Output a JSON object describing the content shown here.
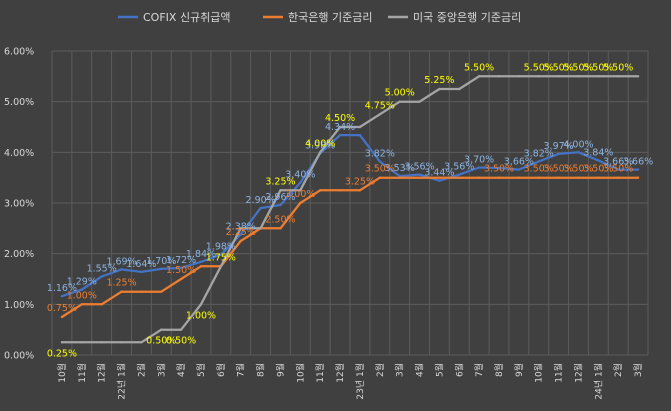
{
  "chart_data": {
    "type": "line",
    "title": "",
    "xlabel": "",
    "ylabel": "",
    "ylim": [
      0,
      6
    ],
    "yticks": [
      "0.00%",
      "1.00%",
      "2.00%",
      "3.00%",
      "4.00%",
      "5.00%",
      "6.00%"
    ],
    "grid": true,
    "legend_position": "top",
    "categories": [
      "10",
      "11",
      "12",
      "22년 1",
      "2",
      "3",
      "4",
      "5",
      "6",
      "7",
      "8",
      "9",
      "10",
      "11",
      "12",
      "23년 1",
      "2",
      "3",
      "4",
      "5",
      "6",
      "7",
      "8",
      "9",
      "10",
      "11",
      "12",
      "24년 1",
      "2",
      "3"
    ],
    "x_suffix": "월",
    "series": [
      {
        "name": "COFIX 신규취급액",
        "color": "#4472c4",
        "label_color": "#8db4e2",
        "values": [
          1.16,
          1.29,
          1.55,
          1.69,
          1.64,
          1.7,
          1.72,
          1.84,
          1.98,
          2.38,
          2.9,
          2.96,
          3.4,
          3.98,
          4.34,
          4.34,
          3.82,
          3.53,
          3.56,
          3.44,
          3.56,
          3.7,
          3.69,
          3.66,
          3.82,
          3.97,
          4.0,
          3.84,
          3.66,
          3.66
        ],
        "labels": [
          "1.16%",
          "1.29%",
          "1.55%",
          "1.69%",
          "1.64%",
          "1.70%",
          "1.72%",
          "1.84%",
          "1.98%",
          "2.38%",
          "2.90%",
          "2.96%",
          "3.40%",
          "3.98%",
          "4.34%",
          "",
          "3.82%",
          "3.53%",
          "3.56%",
          "3.44%",
          "3.56%",
          "3.70%",
          "",
          "3.66%",
          "3.82%",
          "3.97%",
          "4.00%",
          "3.84%",
          "3.66%",
          "3.66%"
        ]
      },
      {
        "name": "한국은행 기준금리",
        "color": "#ed7d31",
        "label_color": "#ed7d31",
        "values": [
          0.75,
          1.0,
          1.0,
          1.25,
          1.25,
          1.25,
          1.5,
          1.75,
          1.75,
          2.25,
          2.5,
          2.5,
          3.0,
          3.25,
          3.25,
          3.25,
          3.5,
          3.5,
          3.5,
          3.5,
          3.5,
          3.5,
          3.5,
          3.5,
          3.5,
          3.5,
          3.5,
          3.5,
          3.5,
          3.5
        ],
        "labels": [
          "0.75%",
          "1.00%",
          "",
          "1.25%",
          "",
          "",
          "1.50%",
          "",
          "",
          "2.25%",
          "",
          "2.50%",
          "3.00%",
          "",
          "",
          "3.25%",
          "3.50%",
          "",
          "",
          "",
          "",
          "",
          "3.50%",
          "",
          "3.50%",
          "3.50%",
          "3.50%",
          "3.50%",
          "3.50%",
          ""
        ]
      },
      {
        "name": "미국 중앙은행 기준금리",
        "color": "#a5a5a5",
        "label_color": "#ffff00",
        "values": [
          0.25,
          0.25,
          0.25,
          0.25,
          0.25,
          0.5,
          0.5,
          1.0,
          1.75,
          2.5,
          2.5,
          3.25,
          3.25,
          4.0,
          4.5,
          4.5,
          4.75,
          5.0,
          5.0,
          5.25,
          5.25,
          5.5,
          5.5,
          5.5,
          5.5,
          5.5,
          5.5,
          5.5,
          5.5,
          5.5
        ],
        "labels": [
          "0.25%",
          "",
          "",
          "",
          "",
          "0.50%",
          "0.50%",
          "1.00%",
          "1.75%",
          "",
          "",
          "3.25%",
          "",
          "4.00%",
          "4.50%",
          "",
          "4.75%",
          "5.00%",
          "",
          "5.25%",
          "",
          "5.50%",
          "",
          "",
          "5.50%",
          "5.50%",
          "5.50%",
          "5.50%",
          "5.50%",
          ""
        ]
      }
    ]
  }
}
